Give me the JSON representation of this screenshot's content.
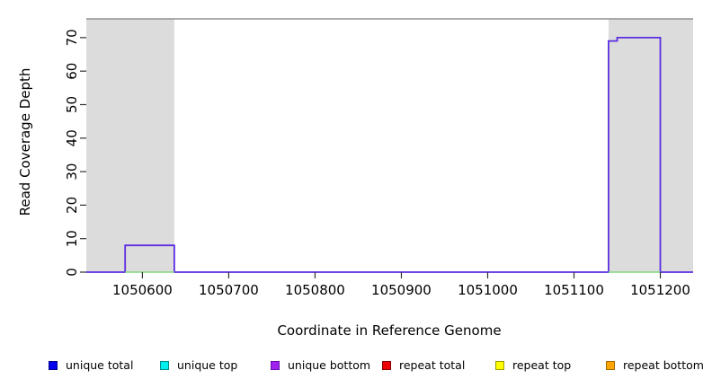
{
  "chart_data": {
    "type": "line",
    "subtype": "step",
    "title": "",
    "xlabel": "Coordinate in Reference Genome",
    "ylabel": "Read Coverage Depth",
    "xlim": [
      1050535,
      1051238
    ],
    "ylim": [
      0,
      75.6
    ],
    "x_ticks": [
      1050600,
      1050700,
      1050800,
      1050900,
      1051000,
      1051100,
      1051200
    ],
    "y_ticks": [
      0,
      10,
      20,
      30,
      40,
      50,
      60,
      70
    ],
    "grid": "off",
    "legend_position": "bottom",
    "background_regions": [
      {
        "name": "repeat-region-left",
        "x0": 1050535,
        "x1": 1050637,
        "color": "#dcdcdc"
      },
      {
        "name": "repeat-region-right",
        "x0": 1051140,
        "x1": 1051238,
        "color": "#dcdcdc"
      }
    ],
    "series": [
      {
        "name": "unique coverage step line",
        "color": "#5c2de1",
        "type": "step",
        "points": [
          [
            1050535,
            0
          ],
          [
            1050580,
            0
          ],
          [
            1050580,
            8
          ],
          [
            1050637,
            8
          ],
          [
            1050637,
            0
          ],
          [
            1051140,
            0
          ],
          [
            1051140,
            69
          ],
          [
            1051150,
            69
          ],
          [
            1051150,
            70
          ],
          [
            1051200,
            70
          ],
          [
            1051200,
            0
          ],
          [
            1051238,
            0
          ]
        ]
      },
      {
        "name": "overlapping series at zero (green)",
        "color": "#7fd87f",
        "type": "segments",
        "y": 0,
        "segments": [
          [
            1050580,
            1050637
          ],
          [
            1051140,
            1051200
          ]
        ]
      }
    ]
  },
  "legend": {
    "items": [
      {
        "label": "unique total",
        "color": "#0000ee",
        "border": "#00008b"
      },
      {
        "label": "unique top",
        "color": "#00eeee",
        "border": "#008b8b"
      },
      {
        "label": "unique bottom",
        "color": "#a020f0",
        "border": "#6a0dad"
      },
      {
        "label": "repeat total",
        "color": "#ee0000",
        "border": "#8b0000"
      },
      {
        "label": "repeat top",
        "color": "#ffff00",
        "border": "#9a9a00"
      },
      {
        "label": "repeat bottom",
        "color": "#ffa500",
        "border": "#a56a00"
      }
    ]
  },
  "colors": {
    "plot_border": "#909090",
    "tick": "#303030",
    "region_fill": "#dcdcdc"
  }
}
